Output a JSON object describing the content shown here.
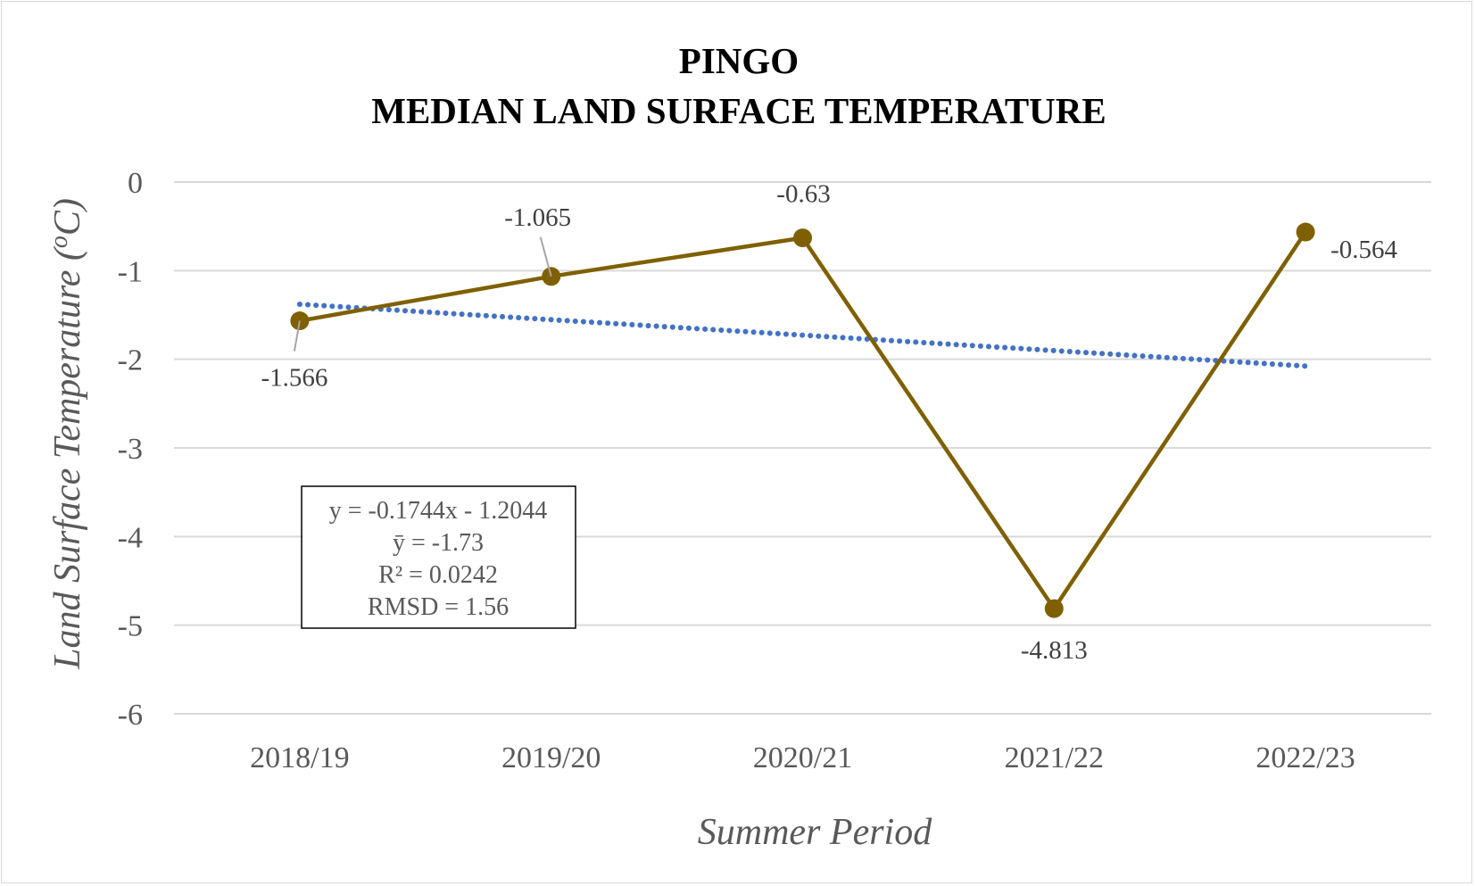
{
  "chart_data": {
    "type": "line",
    "title": [
      "PINGO",
      "MEDIAN LAND SURFACE TEMPERATURE"
    ],
    "xlabel": "Summer Period",
    "ylabel": "Land Surface Temperature (",
    "ylabel_sup": "o",
    "ylabel_end": "C)",
    "categories": [
      "2018/19",
      "2019/20",
      "2020/21",
      "2021/22",
      "2022/23"
    ],
    "ylim": [
      -6,
      0
    ],
    "yticks": [
      0,
      -1,
      -2,
      -3,
      -4,
      -5,
      -6
    ],
    "ytick_labels": [
      "0",
      "-1",
      "-2",
      "-3",
      "-4",
      "-5",
      "-6"
    ],
    "series": [
      {
        "values": [
          -1.566,
          -1.065,
          -0.63,
          -4.813,
          -0.564
        ],
        "data_labels": [
          "-1.566",
          "-1.065",
          "-0.63",
          "-4.813",
          "-0.564"
        ],
        "color": "#7f6000",
        "marker": "circle"
      }
    ],
    "trendline": {
      "type": "linear",
      "slope": -0.1744,
      "intercept": -1.2044,
      "color": "#4472c4",
      "style": "dotted"
    },
    "annotation": {
      "lines": [
        "y = -0.1744x - 1.2044",
        "ȳ =  -1.73",
        "R² = 0.0242",
        "RMSD = 1.56"
      ]
    },
    "grid": true,
    "legend": "none"
  }
}
